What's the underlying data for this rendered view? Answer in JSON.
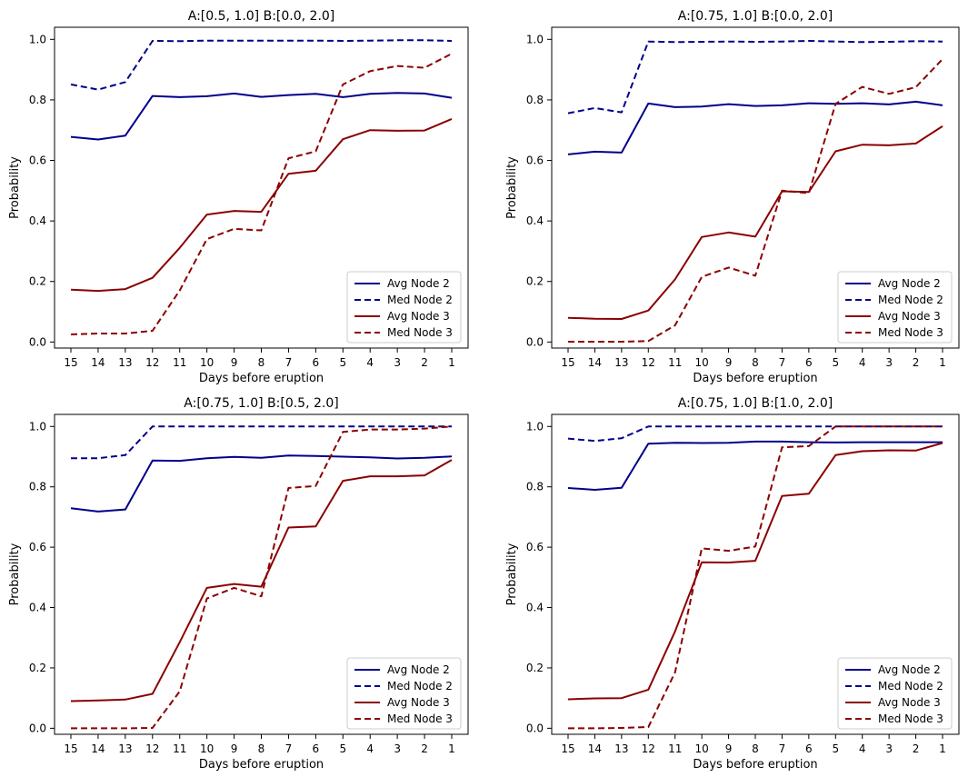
{
  "figure": {
    "xlabel": "Days before eruption",
    "ylabel": "Probability",
    "colors": {
      "node2": "#00008b",
      "node3": "#8b0000"
    }
  },
  "chart_data": [
    {
      "type": "line",
      "title": "A:[0.5, 1.0] B:[0.0, 2.0]",
      "xlabel": "Days before eruption",
      "ylabel": "Probability",
      "x": [
        15,
        14,
        13,
        12,
        11,
        10,
        9,
        8,
        7,
        6,
        5,
        4,
        3,
        2,
        1
      ],
      "xticks": [
        "15",
        "14",
        "13",
        "12",
        "11",
        "10",
        "9",
        "8",
        "7",
        "6",
        "5",
        "4",
        "3",
        "2",
        "1"
      ],
      "yticks": [
        "0.0",
        "0.2",
        "0.4",
        "0.6",
        "0.8",
        "1.0"
      ],
      "ylim": [
        -0.02,
        1.04
      ],
      "legend": "lower-right",
      "series": [
        {
          "name": "Avg Node 2",
          "color": "#00008b",
          "dashed": false,
          "values": [
            0.678,
            0.669,
            0.682,
            0.813,
            0.809,
            0.812,
            0.821,
            0.81,
            0.816,
            0.82,
            0.809,
            0.82,
            0.823,
            0.821,
            0.807
          ]
        },
        {
          "name": "Med Node 2",
          "color": "#00008b",
          "dashed": true,
          "values": [
            0.851,
            0.834,
            0.859,
            0.995,
            0.994,
            0.996,
            0.996,
            0.996,
            0.996,
            0.996,
            0.995,
            0.996,
            0.997,
            0.997,
            0.995
          ]
        },
        {
          "name": "Avg Node 3",
          "color": "#8b0000",
          "dashed": false,
          "values": [
            0.173,
            0.169,
            0.175,
            0.212,
            0.311,
            0.421,
            0.433,
            0.43,
            0.556,
            0.566,
            0.67,
            0.7,
            0.698,
            0.699,
            0.737
          ]
        },
        {
          "name": "Med Node 3",
          "color": "#8b0000",
          "dashed": true,
          "values": [
            0.025,
            0.028,
            0.028,
            0.037,
            0.17,
            0.34,
            0.374,
            0.369,
            0.607,
            0.63,
            0.851,
            0.895,
            0.912,
            0.906,
            0.953
          ]
        }
      ]
    },
    {
      "type": "line",
      "title": "A:[0.75, 1.0] B:[0.0, 2.0]",
      "xlabel": "Days before eruption",
      "ylabel": "Probability",
      "x": [
        15,
        14,
        13,
        12,
        11,
        10,
        9,
        8,
        7,
        6,
        5,
        4,
        3,
        2,
        1
      ],
      "xticks": [
        "15",
        "14",
        "13",
        "12",
        "11",
        "10",
        "9",
        "8",
        "7",
        "6",
        "5",
        "4",
        "3",
        "2",
        "1"
      ],
      "yticks": [
        "0.0",
        "0.2",
        "0.4",
        "0.6",
        "0.8",
        "1.0"
      ],
      "ylim": [
        -0.02,
        1.04
      ],
      "legend": "lower-right",
      "series": [
        {
          "name": "Avg Node 2",
          "color": "#00008b",
          "dashed": false,
          "values": [
            0.62,
            0.629,
            0.626,
            0.788,
            0.776,
            0.778,
            0.786,
            0.78,
            0.782,
            0.789,
            0.787,
            0.789,
            0.785,
            0.794,
            0.782
          ]
        },
        {
          "name": "Med Node 2",
          "color": "#00008b",
          "dashed": true,
          "values": [
            0.756,
            0.773,
            0.759,
            0.993,
            0.991,
            0.992,
            0.993,
            0.992,
            0.993,
            0.995,
            0.993,
            0.991,
            0.992,
            0.994,
            0.993
          ]
        },
        {
          "name": "Avg Node 3",
          "color": "#8b0000",
          "dashed": false,
          "values": [
            0.08,
            0.077,
            0.076,
            0.104,
            0.207,
            0.347,
            0.362,
            0.348,
            0.498,
            0.496,
            0.63,
            0.652,
            0.65,
            0.656,
            0.713
          ]
        },
        {
          "name": "Med Node 3",
          "color": "#8b0000",
          "dashed": true,
          "values": [
            0.001,
            0.001,
            0.001,
            0.003,
            0.055,
            0.215,
            0.246,
            0.219,
            0.5,
            0.492,
            0.787,
            0.843,
            0.82,
            0.842,
            0.935
          ]
        }
      ]
    },
    {
      "type": "line",
      "title": "A:[0.75, 1.0] B:[0.5, 2.0]",
      "xlabel": "Days before eruption",
      "ylabel": "Probability",
      "x": [
        15,
        14,
        13,
        12,
        11,
        10,
        9,
        8,
        7,
        6,
        5,
        4,
        3,
        2,
        1
      ],
      "xticks": [
        "15",
        "14",
        "13",
        "12",
        "11",
        "10",
        "9",
        "8",
        "7",
        "6",
        "5",
        "4",
        "3",
        "2",
        "1"
      ],
      "yticks": [
        "0.0",
        "0.2",
        "0.4",
        "0.6",
        "0.8",
        "1.0"
      ],
      "ylim": [
        -0.02,
        1.04
      ],
      "legend": "lower-right",
      "series": [
        {
          "name": "Avg Node 2",
          "color": "#00008b",
          "dashed": false,
          "values": [
            0.729,
            0.718,
            0.725,
            0.887,
            0.886,
            0.895,
            0.899,
            0.896,
            0.904,
            0.902,
            0.9,
            0.898,
            0.894,
            0.896,
            0.901
          ]
        },
        {
          "name": "Med Node 2",
          "color": "#00008b",
          "dashed": true,
          "values": [
            0.895,
            0.895,
            0.905,
            1.0,
            1.0,
            1.0,
            1.0,
            1.0,
            1.0,
            1.0,
            1.0,
            1.0,
            1.0,
            1.0,
            1.0
          ]
        },
        {
          "name": "Avg Node 3",
          "color": "#8b0000",
          "dashed": false,
          "values": [
            0.09,
            0.092,
            0.095,
            0.114,
            0.285,
            0.465,
            0.478,
            0.469,
            0.665,
            0.669,
            0.82,
            0.835,
            0.835,
            0.838,
            0.889
          ]
        },
        {
          "name": "Med Node 3",
          "color": "#8b0000",
          "dashed": true,
          "values": [
            0.0,
            0.0,
            0.0,
            0.001,
            0.122,
            0.43,
            0.465,
            0.437,
            0.796,
            0.803,
            0.982,
            0.99,
            0.99,
            0.993,
            1.0
          ]
        }
      ]
    },
    {
      "type": "line",
      "title": "A:[0.75, 1.0] B:[1.0, 2.0]",
      "xlabel": "Days before eruption",
      "ylabel": "Probability",
      "x": [
        15,
        14,
        13,
        12,
        11,
        10,
        9,
        8,
        7,
        6,
        5,
        4,
        3,
        2,
        1
      ],
      "xticks": [
        "15",
        "14",
        "13",
        "12",
        "11",
        "10",
        "9",
        "8",
        "7",
        "6",
        "5",
        "4",
        "3",
        "2",
        "1"
      ],
      "yticks": [
        "0.0",
        "0.2",
        "0.4",
        "0.6",
        "0.8",
        "1.0"
      ],
      "ylim": [
        -0.02,
        1.04
      ],
      "legend": "lower-right",
      "series": [
        {
          "name": "Avg Node 2",
          "color": "#00008b",
          "dashed": false,
          "values": [
            0.796,
            0.79,
            0.797,
            0.943,
            0.946,
            0.945,
            0.946,
            0.95,
            0.95,
            0.948,
            0.947,
            0.948,
            0.948,
            0.948,
            0.948
          ]
        },
        {
          "name": "Med Node 2",
          "color": "#00008b",
          "dashed": true,
          "values": [
            0.96,
            0.952,
            0.961,
            1.0,
            1.0,
            1.0,
            1.0,
            1.0,
            1.0,
            1.0,
            1.0,
            1.0,
            1.0,
            1.0,
            1.0
          ]
        },
        {
          "name": "Avg Node 3",
          "color": "#8b0000",
          "dashed": false,
          "values": [
            0.096,
            0.099,
            0.1,
            0.128,
            0.321,
            0.55,
            0.549,
            0.555,
            0.77,
            0.777,
            0.905,
            0.918,
            0.921,
            0.92,
            0.945
          ]
        },
        {
          "name": "Med Node 3",
          "color": "#8b0000",
          "dashed": true,
          "values": [
            0.0,
            0.0,
            0.001,
            0.004,
            0.185,
            0.596,
            0.588,
            0.602,
            0.931,
            0.935,
            1.0,
            1.0,
            1.0,
            1.0,
            1.0
          ]
        }
      ]
    }
  ]
}
